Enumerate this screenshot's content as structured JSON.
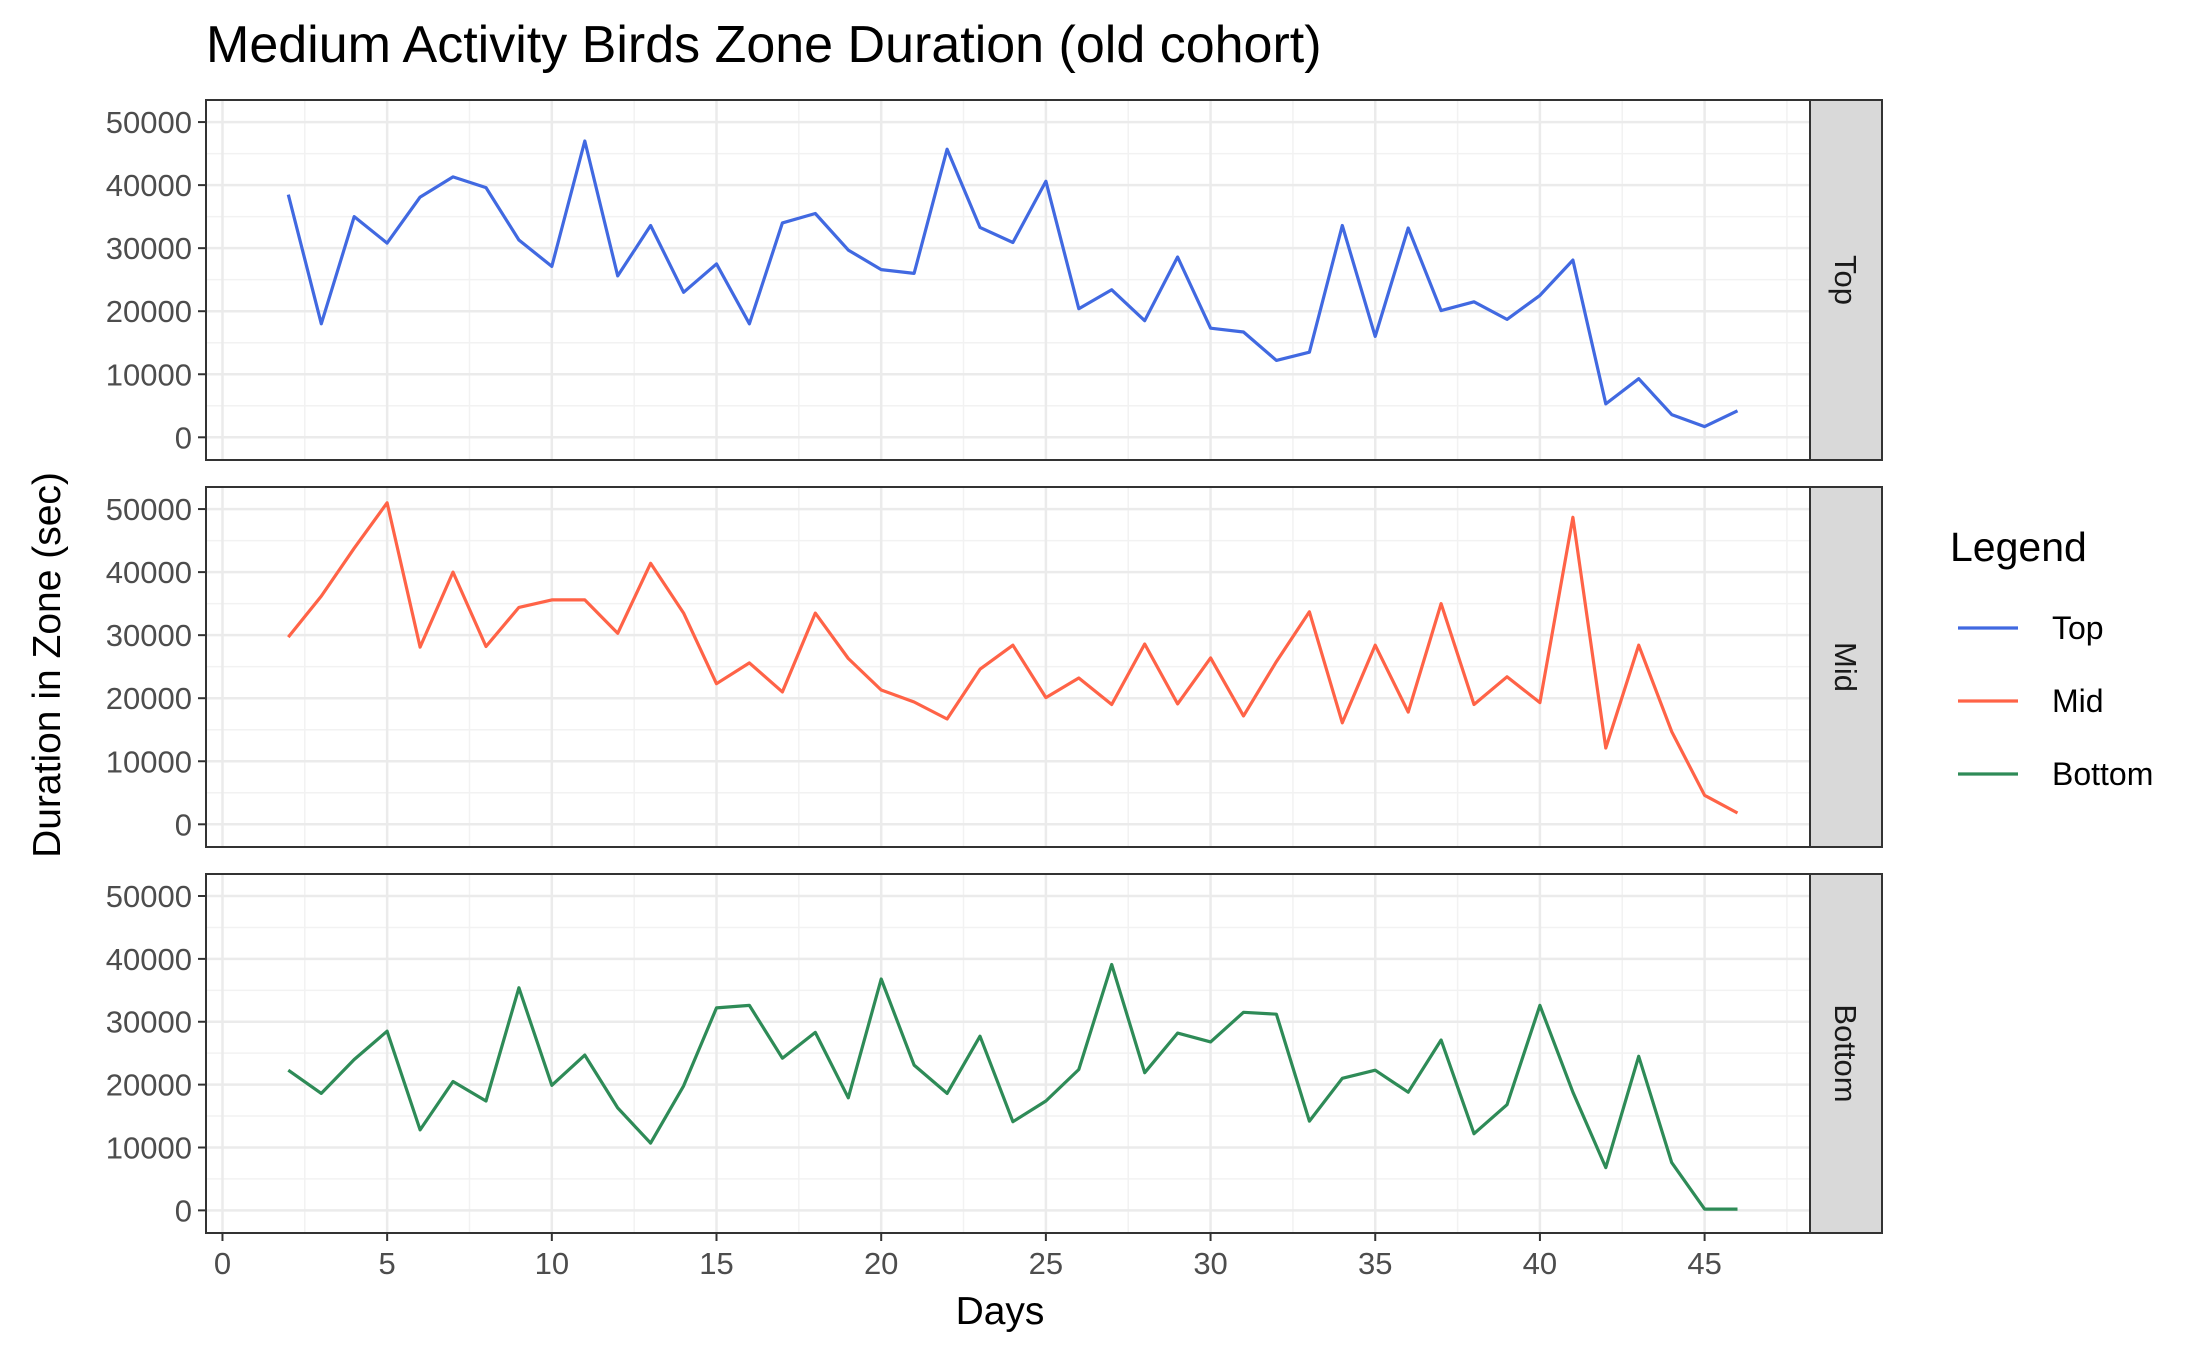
{
  "chart_data": {
    "type": "line",
    "title": "Medium Activity Birds Zone Duration (old cohort)",
    "xlabel": "Days",
    "ylabel": "Duration in Zone (sec)",
    "xlim": [
      -0.5,
      48.2
    ],
    "ylim": [
      -3600,
      53500
    ],
    "x_ticks": [
      0,
      5,
      10,
      15,
      20,
      25,
      30,
      35,
      40,
      45
    ],
    "x_tick_labels": [
      "0",
      "5",
      "10",
      "15",
      "20",
      "25",
      "30",
      "35",
      "40",
      "45"
    ],
    "y_ticks": [
      0,
      10000,
      20000,
      30000,
      40000,
      50000
    ],
    "y_tick_labels": [
      "0",
      "10000",
      "20000",
      "30000",
      "40000",
      "50000"
    ],
    "grid": true,
    "facet": "rows",
    "legend": {
      "title": "Legend",
      "position": "right",
      "entries": [
        "Top",
        "Mid",
        "Bottom"
      ]
    },
    "x": [
      2,
      3,
      4,
      5,
      6,
      7,
      8,
      9,
      10,
      11,
      12,
      13,
      14,
      15,
      16,
      17,
      18,
      19,
      20,
      21,
      22,
      23,
      24,
      25,
      26,
      27,
      28,
      29,
      30,
      31,
      32,
      33,
      34,
      35,
      36,
      37,
      38,
      39,
      40,
      41,
      42,
      43,
      44,
      45,
      46
    ],
    "series": [
      {
        "name": "Top",
        "color": "#4169E1",
        "values": [
          38500,
          18000,
          35000,
          30800,
          38100,
          41300,
          39600,
          31300,
          27100,
          47000,
          25600,
          33600,
          23000,
          27500,
          18000,
          34000,
          35500,
          29700,
          26600,
          26000,
          45700,
          33300,
          30900,
          40600,
          20400,
          23400,
          18500,
          28600,
          17300,
          16700,
          12200,
          13500,
          33600,
          16000,
          33200,
          20100,
          21500,
          18700,
          22500,
          28100,
          5300,
          9300,
          3600,
          1700,
          4200
        ]
      },
      {
        "name": "Mid",
        "color": "#FF6347",
        "values": [
          29700,
          36200,
          43800,
          51000,
          28100,
          40000,
          28200,
          34400,
          35600,
          35600,
          30300,
          41400,
          33500,
          22300,
          25600,
          21000,
          33500,
          26300,
          21300,
          19400,
          16700,
          24600,
          28400,
          20100,
          23200,
          19000,
          28600,
          19100,
          26400,
          17200,
          25800,
          33700,
          16100,
          28400,
          17800,
          35000,
          19000,
          23400,
          19300,
          48700,
          12100,
          28400,
          14700,
          4600,
          1800
        ]
      },
      {
        "name": "Bottom",
        "color": "#2E8B57",
        "values": [
          22300,
          18600,
          24000,
          28500,
          12800,
          20500,
          17400,
          35400,
          19900,
          24700,
          16300,
          10700,
          19800,
          32200,
          32600,
          24200,
          28300,
          17900,
          36800,
          23100,
          18600,
          27700,
          14100,
          17400,
          22400,
          39100,
          21900,
          28200,
          26800,
          31500,
          31200,
          14200,
          21000,
          22300,
          18800,
          27100,
          12200,
          16800,
          32600,
          18800,
          6800,
          24500,
          7600,
          200,
          200
        ]
      }
    ]
  }
}
